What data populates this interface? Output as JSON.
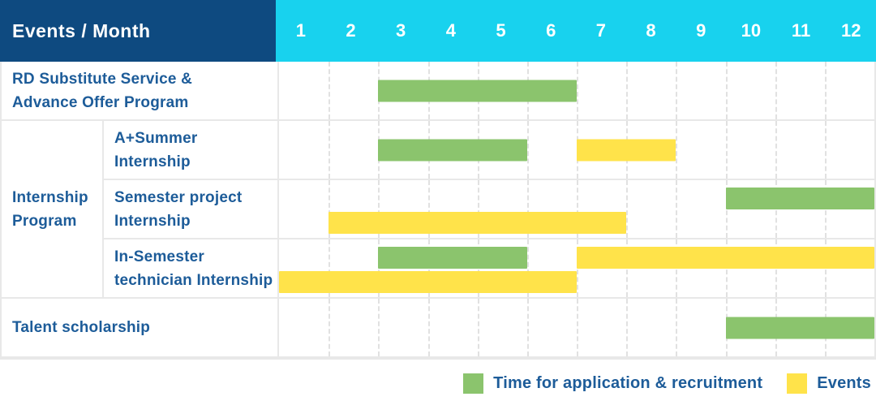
{
  "header": {
    "title": "Events / Month"
  },
  "colors": {
    "navy": "#0e4a80",
    "cyan": "#18d2ee",
    "green": "#8bc46d",
    "yellow": "#ffe34a",
    "text_blue": "#1d5c99",
    "grid_border": "#e8e8e8",
    "grid_dash": "#d8d8d8"
  },
  "chart_data": {
    "type": "bar",
    "variant": "gantt",
    "title": "Events / Month",
    "x_axis": {
      "label": "Month",
      "ticks": [
        "1",
        "2",
        "3",
        "4",
        "5",
        "6",
        "7",
        "8",
        "9",
        "10",
        "11",
        "12"
      ],
      "range": [
        1,
        12
      ]
    },
    "grid": "vertical-dashed",
    "legend_position": "bottom-right",
    "legend": [
      {
        "series": "application",
        "label": "Time for application & recruitment",
        "color": "#8bc46d"
      },
      {
        "series": "events",
        "label": "Events",
        "color": "#ffe34a"
      }
    ],
    "groups": {
      "internship-program": {
        "label_lines": [
          "Internship",
          "Program"
        ]
      }
    },
    "rows": [
      {
        "id": "rd-substitute-service",
        "group_id": null,
        "label_lines": [
          "RD Substitute Service &",
          "Advance Offer Program"
        ],
        "bars": [
          {
            "series": "application",
            "start_month": 3,
            "end_month": 6,
            "line": "center"
          }
        ]
      },
      {
        "id": "a-plus-summer-internship",
        "group_id": "internship-program",
        "label_lines": [
          "A+Summer",
          "Internship"
        ],
        "bars": [
          {
            "series": "application",
            "start_month": 3,
            "end_month": 5,
            "line": "center"
          },
          {
            "series": "events",
            "start_month": 7,
            "end_month": 8,
            "line": "center"
          }
        ]
      },
      {
        "id": "semester-project-internship",
        "group_id": "internship-program",
        "label_lines": [
          "Semester project",
          "Internship"
        ],
        "bars": [
          {
            "series": "application",
            "start_month": 10,
            "end_month": 12,
            "line": "top"
          },
          {
            "series": "events",
            "start_month": 2,
            "end_month": 7,
            "line": "bottom"
          }
        ]
      },
      {
        "id": "in-semester-technician-internship",
        "group_id": "internship-program",
        "label_lines": [
          "In-Semester",
          "technician Internship"
        ],
        "bars": [
          {
            "series": "application",
            "start_month": 3,
            "end_month": 5,
            "line": "top"
          },
          {
            "series": "events",
            "start_month": 7,
            "end_month": 12,
            "line": "top"
          },
          {
            "series": "events",
            "start_month": 1,
            "end_month": 6,
            "line": "bottom"
          }
        ]
      },
      {
        "id": "talent-scholarship",
        "group_id": null,
        "label_lines": [
          "Talent scholarship"
        ],
        "bars": [
          {
            "series": "application",
            "start_month": 10,
            "end_month": 12,
            "line": "center"
          }
        ]
      }
    ]
  }
}
